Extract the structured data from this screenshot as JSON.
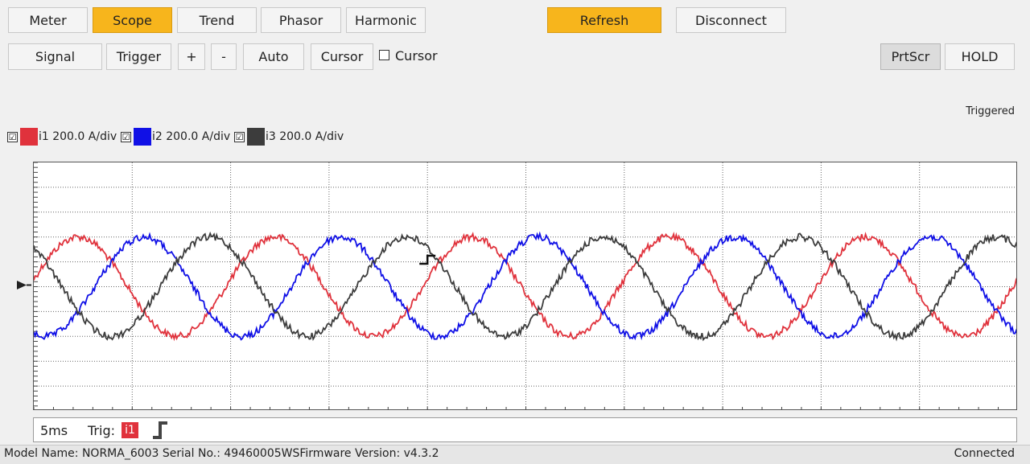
{
  "nav": {
    "meter": "Meter",
    "scope": "Scope",
    "trend": "Trend",
    "phasor": "Phasor",
    "harmonic": "Harmonic",
    "refresh": "Refresh",
    "disconnect": "Disconnect"
  },
  "toolbar": {
    "signal": "Signal",
    "trigger": "Trigger",
    "plus": "+",
    "minus": "-",
    "auto": "Auto",
    "cursor_button": "Cursor",
    "cursor_check_label": "Cursor",
    "cursor_checked": false,
    "prtscr": "PrtScr",
    "hold": "HOLD"
  },
  "colors": {
    "accent": "#f7b51c",
    "i1": "#e0323c",
    "i2": "#1010e6",
    "i3": "#3c3c3c"
  },
  "status_triggered": "Triggered",
  "channels": [
    {
      "check": "☑",
      "label": "i1 200.0 A/div",
      "color": "#e0323c"
    },
    {
      "check": "☑",
      "label": "i2 200.0 A/div",
      "color": "#1010e6"
    },
    {
      "check": "☑",
      "label": "i3 200.0 A/div",
      "color": "#3c3c3c"
    }
  ],
  "chart_data": {
    "type": "line",
    "title": "",
    "xlabel": "",
    "ylabel": "",
    "x_divisions": 10,
    "y_divisions": 10,
    "time_per_div_ms": 5,
    "y_scale": "200.0 A/div",
    "grid": true,
    "trigger_position_div": 4.0,
    "series": [
      {
        "name": "i1",
        "color": "#e0323c",
        "amplitude_div": 2.0,
        "cycles_per_screen": 5.0,
        "phase_deg": 0,
        "noise_div": 0.28
      },
      {
        "name": "i2",
        "color": "#1010e6",
        "amplitude_div": 2.0,
        "cycles_per_screen": 5.0,
        "phase_deg": -120,
        "noise_div": 0.28
      },
      {
        "name": "i3",
        "color": "#3c3c3c",
        "amplitude_div": 2.0,
        "cycles_per_screen": 5.0,
        "phase_deg": 120,
        "noise_div": 0.28
      }
    ]
  },
  "footer": {
    "timebase": "5ms",
    "trig_label": "Trig:",
    "trig_channel": "i1",
    "trig_edge": "rising"
  },
  "statusbar": {
    "model": "Model Name:  NORMA_6003 Serial No.:  49460005WSFirmware Version:  v4.3.2",
    "connection": "Connected"
  }
}
